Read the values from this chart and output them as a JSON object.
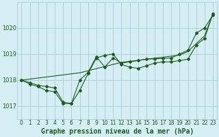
{
  "title": "Graphe pression niveau de la mer (hPa)",
  "background_color": "#d4eef4",
  "grid_color": "#aaccd8",
  "line_color": "#1a5c1a",
  "x_labels": [
    "0",
    "1",
    "2",
    "3",
    "4",
    "5",
    "6",
    "7",
    "8",
    "9",
    "10",
    "11",
    "12",
    "13",
    "14",
    "15",
    "16",
    "17",
    "18",
    "19",
    "20",
    "21",
    "22",
    "23"
  ],
  "ylim": [
    1016.5,
    1021.0
  ],
  "yticks": [
    1017,
    1018,
    1019,
    1020
  ],
  "series_jagged1": [
    1018.0,
    1017.85,
    1017.75,
    1017.6,
    1017.55,
    1017.1,
    1017.1,
    1017.6,
    1018.25,
    1018.85,
    1018.95,
    1019.0,
    1018.6,
    1018.5,
    1018.45,
    1018.55,
    1018.65,
    1018.7,
    1018.7,
    1018.75,
    1018.8,
    1019.35,
    1019.6,
    1020.55
  ],
  "series_jagged2": [
    1018.0,
    1017.9,
    1017.8,
    1017.75,
    1017.7,
    1017.15,
    1017.1,
    1018.0,
    1018.3,
    1018.9,
    1018.5,
    1018.85,
    1018.65,
    1018.7,
    1018.75,
    1018.8,
    1018.82,
    1018.83,
    1018.85,
    1019.0,
    1019.15,
    1019.8,
    1020.0,
    1020.5
  ],
  "series_trend": [
    1018.0,
    1018.04,
    1018.08,
    1018.12,
    1018.16,
    1018.2,
    1018.24,
    1018.28,
    1018.36,
    1018.44,
    1018.52,
    1018.6,
    1018.68,
    1018.72,
    1018.76,
    1018.8,
    1018.84,
    1018.88,
    1018.92,
    1018.96,
    1019.1,
    1019.4,
    1019.7,
    1020.55
  ],
  "title_color": "#1a5c1a",
  "title_fontsize": 7.0,
  "tick_fontsize": 5.5,
  "ytick_fontsize": 6.0
}
